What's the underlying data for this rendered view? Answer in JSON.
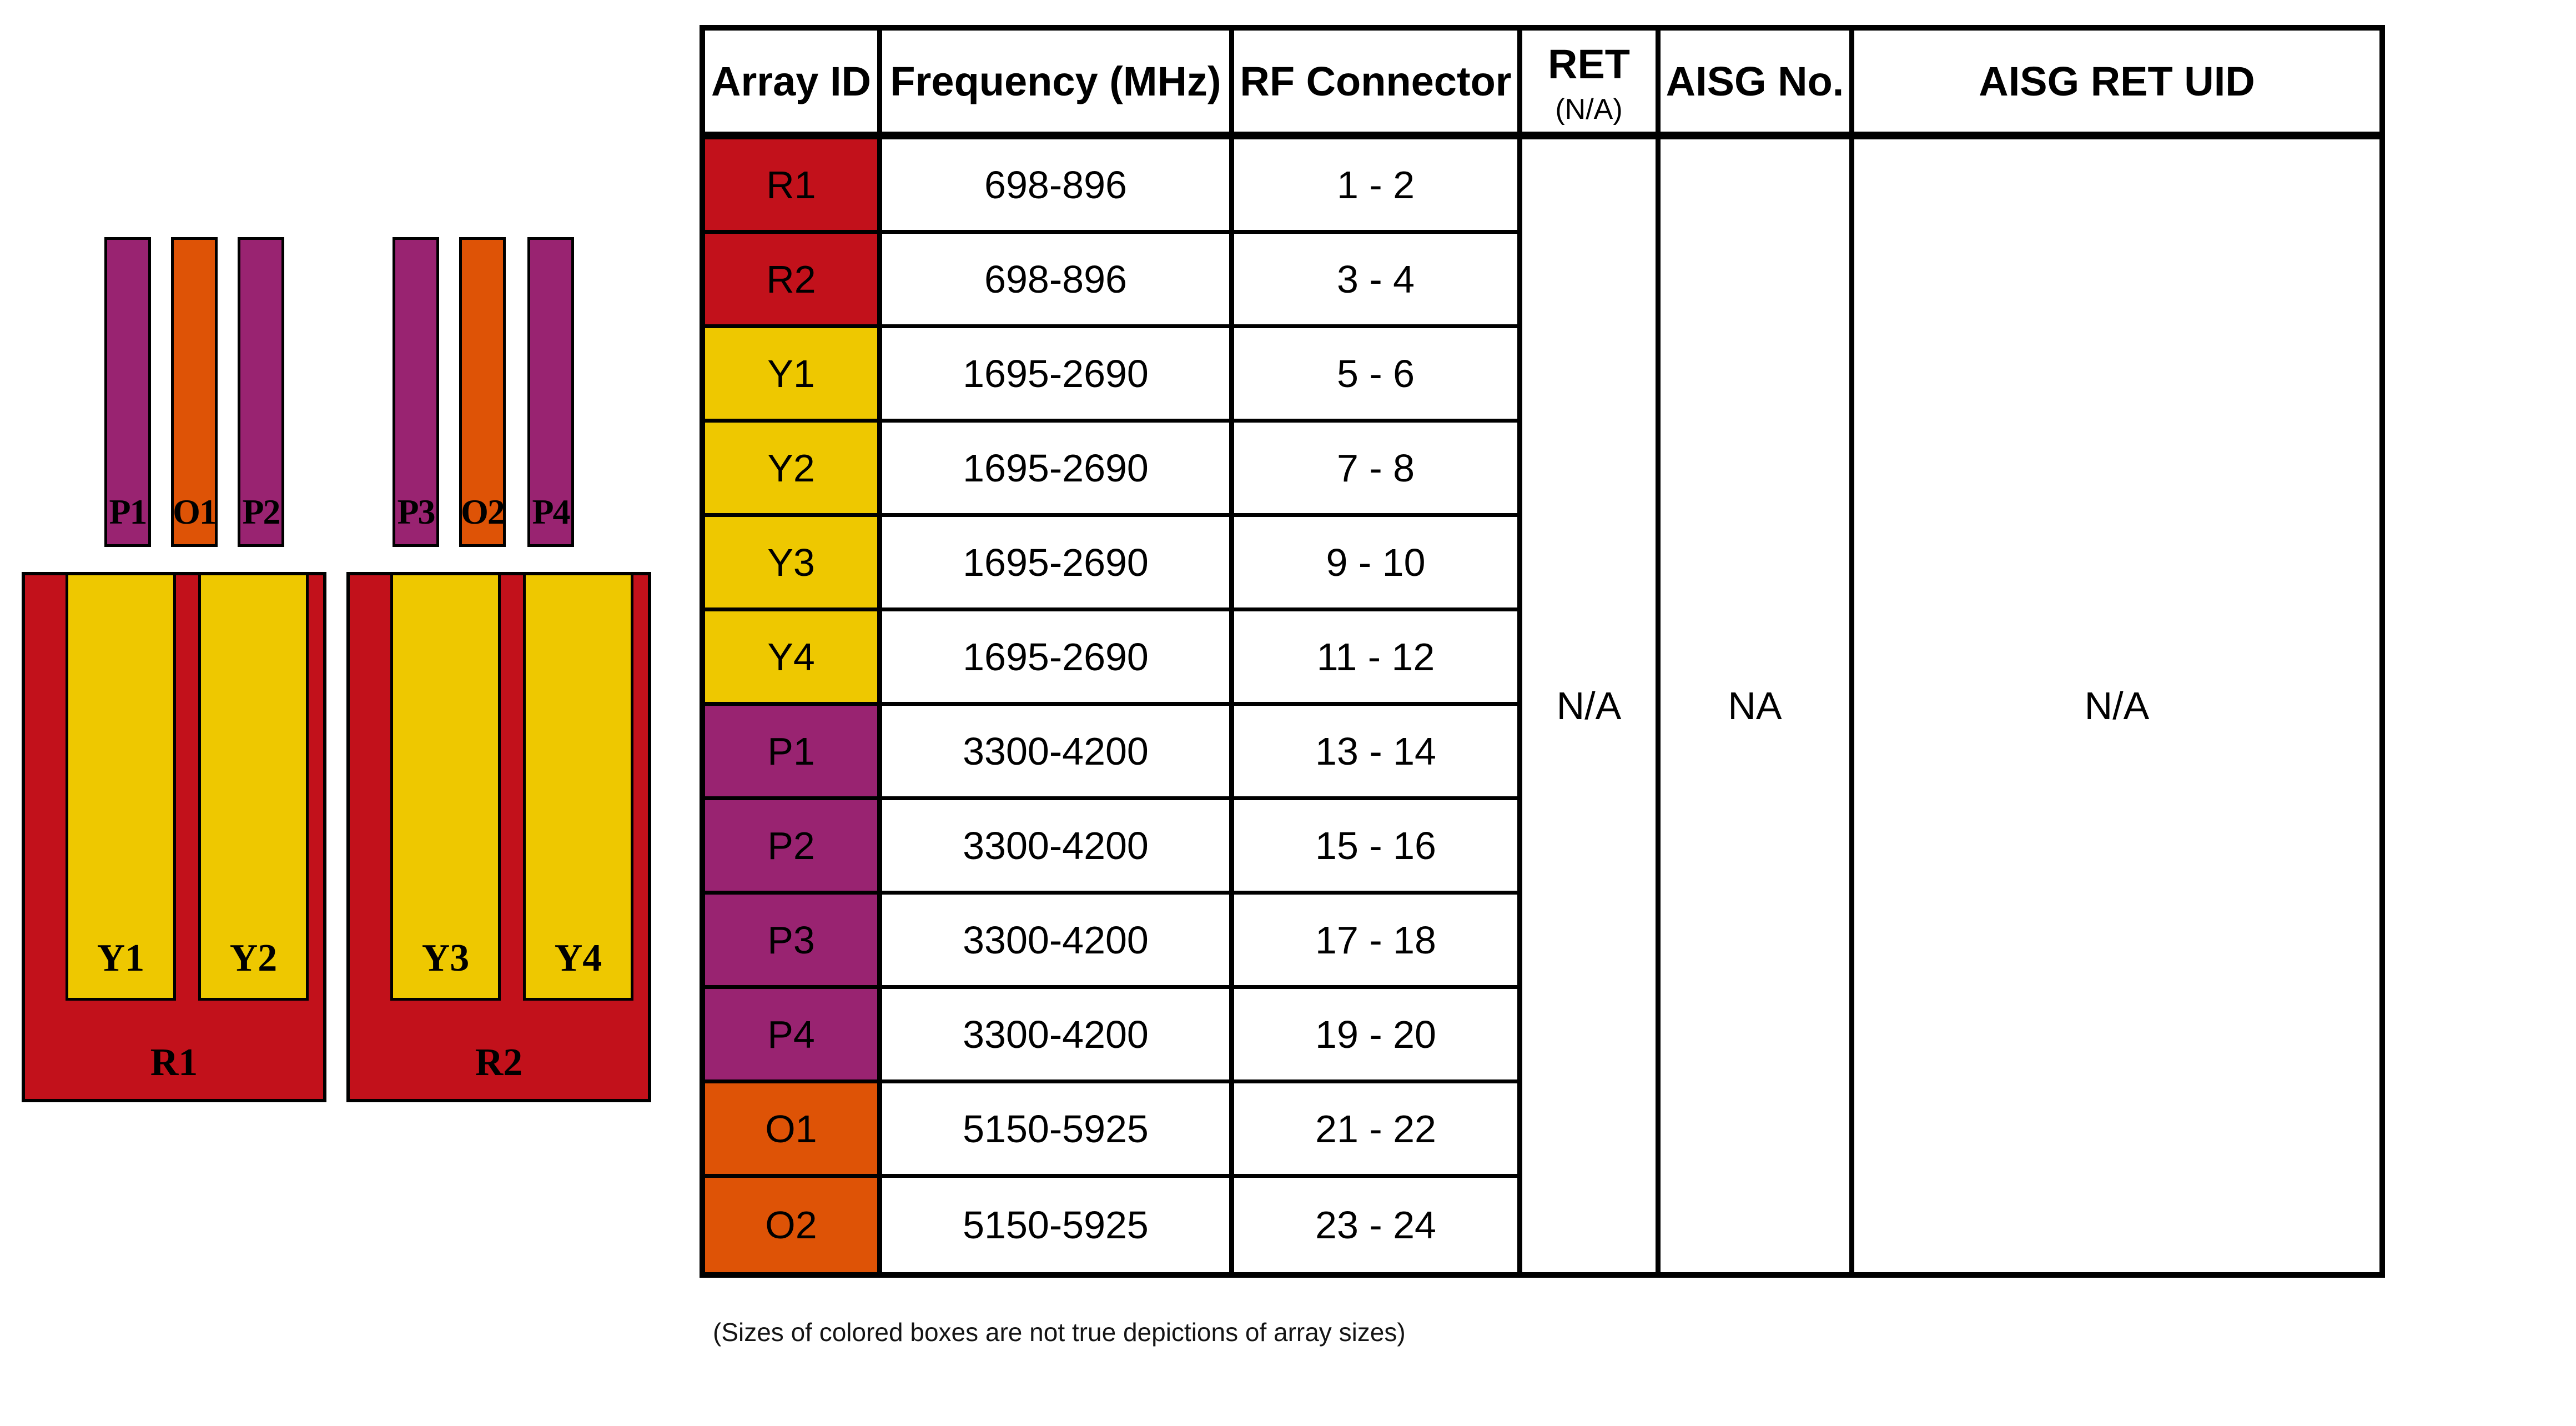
{
  "colors": {
    "red": "#C2111B",
    "yellow": "#EEC800",
    "orange": "#DE5306",
    "purple": "#992371"
  },
  "diagram": {
    "top_bars": [
      {
        "label": "P1",
        "color": "purple"
      },
      {
        "label": "O1",
        "color": "orange"
      },
      {
        "label": "P2",
        "color": "purple"
      },
      {
        "label": "P3",
        "color": "purple"
      },
      {
        "label": "O2",
        "color": "orange"
      },
      {
        "label": "P4",
        "color": "purple"
      }
    ],
    "groups": [
      {
        "label": "R1",
        "color": "red",
        "sub_arrays": [
          {
            "label": "Y1",
            "color": "yellow"
          },
          {
            "label": "Y2",
            "color": "yellow"
          }
        ]
      },
      {
        "label": "R2",
        "color": "red",
        "sub_arrays": [
          {
            "label": "Y3",
            "color": "yellow"
          },
          {
            "label": "Y4",
            "color": "yellow"
          }
        ]
      }
    ],
    "footnote": "(Sizes of colored boxes are not true depictions of array sizes)"
  },
  "table": {
    "headers": {
      "array_id": "Array ID",
      "frequency": "Frequency (MHz)",
      "rf_connector": "RF Connector",
      "ret_line1": "RET",
      "ret_line2": "(N/A)",
      "aisg_no": "AISG No.",
      "aisg_ret_uid": "AISG RET UID"
    },
    "rows": [
      {
        "array_id": "R1",
        "color": "red",
        "frequency": "698-896",
        "rf_connector": "1 - 2"
      },
      {
        "array_id": "R2",
        "color": "red",
        "frequency": "698-896",
        "rf_connector": "3 - 4"
      },
      {
        "array_id": "Y1",
        "color": "yellow",
        "frequency": "1695-2690",
        "rf_connector": "5 - 6"
      },
      {
        "array_id": "Y2",
        "color": "yellow",
        "frequency": "1695-2690",
        "rf_connector": "7 - 8"
      },
      {
        "array_id": "Y3",
        "color": "yellow",
        "frequency": "1695-2690",
        "rf_connector": "9 - 10"
      },
      {
        "array_id": "Y4",
        "color": "yellow",
        "frequency": "1695-2690",
        "rf_connector": "11 - 12"
      },
      {
        "array_id": "P1",
        "color": "purple",
        "frequency": "3300-4200",
        "rf_connector": "13 - 14"
      },
      {
        "array_id": "P2",
        "color": "purple",
        "frequency": "3300-4200",
        "rf_connector": "15 - 16"
      },
      {
        "array_id": "P3",
        "color": "purple",
        "frequency": "3300-4200",
        "rf_connector": "17 - 18"
      },
      {
        "array_id": "P4",
        "color": "purple",
        "frequency": "3300-4200",
        "rf_connector": "19 - 20"
      },
      {
        "array_id": "O1",
        "color": "orange",
        "frequency": "5150-5925",
        "rf_connector": "21 - 22"
      },
      {
        "array_id": "O2",
        "color": "orange",
        "frequency": "5150-5925",
        "rf_connector": "23 - 24"
      }
    ],
    "merged": {
      "ret": "N/A",
      "aisg_no": "NA",
      "aisg_ret_uid": "N/A"
    }
  }
}
